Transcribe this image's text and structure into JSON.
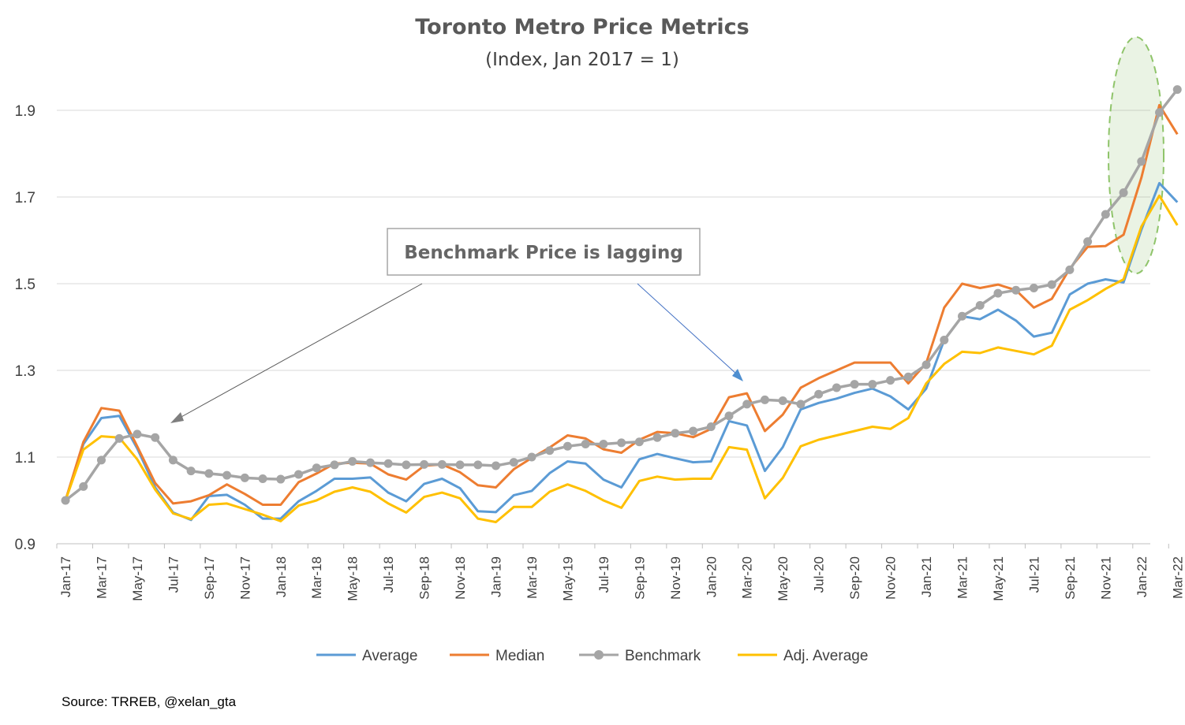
{
  "colors": {
    "Average": "#5b9bd5",
    "Median": "#ed7d31",
    "Benchmark": "#a5a5a5",
    "Adj. Average": "#ffc000",
    "grid": "#d9d9d9",
    "highlight": "#70ad47"
  },
  "source": "Source: TRREB, @xelan_gta",
  "annotation": "Benchmark Price is lagging",
  "chart_data": {
    "type": "line",
    "title": "Toronto Metro Price Metrics",
    "subtitle": "(Index, Jan 2017 = 1)",
    "ylim": [
      0.9,
      2.0
    ],
    "yticks": [
      "0.9",
      "1.1",
      "1.3",
      "1.5",
      "1.7",
      "1.9"
    ],
    "grid": true,
    "legend": "bottom",
    "xtick_labels": [
      "Jan-17",
      "Mar-17",
      "May-17",
      "Jul-17",
      "Sep-17",
      "Nov-17",
      "Jan-18",
      "Mar-18",
      "May-18",
      "Jul-18",
      "Sep-18",
      "Nov-18",
      "Jan-19",
      "Mar-19",
      "May-19",
      "Jul-19",
      "Sep-19",
      "Nov-19",
      "Jan-20",
      "Mar-20",
      "May-20",
      "Jul-20",
      "Sep-20",
      "Nov-20",
      "Jan-21",
      "Mar-21",
      "May-21",
      "Jul-21",
      "Sep-21",
      "Nov-21",
      "Jan-22",
      "Mar-22"
    ],
    "x": [
      "Jan-17",
      "Feb-17",
      "Mar-17",
      "Apr-17",
      "May-17",
      "Jun-17",
      "Jul-17",
      "Aug-17",
      "Sep-17",
      "Oct-17",
      "Nov-17",
      "Dec-17",
      "Jan-18",
      "Feb-18",
      "Mar-18",
      "Apr-18",
      "May-18",
      "Jun-18",
      "Jul-18",
      "Aug-18",
      "Sep-18",
      "Oct-18",
      "Nov-18",
      "Dec-18",
      "Jan-19",
      "Feb-19",
      "Mar-19",
      "Apr-19",
      "May-19",
      "Jun-19",
      "Jul-19",
      "Aug-19",
      "Sep-19",
      "Oct-19",
      "Nov-19",
      "Dec-19",
      "Jan-20",
      "Feb-20",
      "Mar-20",
      "Apr-20",
      "May-20",
      "Jun-20",
      "Jul-20",
      "Aug-20",
      "Sep-20",
      "Oct-20",
      "Nov-20",
      "Dec-20",
      "Jan-21",
      "Feb-21",
      "Mar-21",
      "Apr-21",
      "May-21",
      "Jun-21",
      "Jul-21",
      "Aug-21",
      "Sep-21",
      "Oct-21",
      "Nov-21",
      "Dec-21",
      "Jan-22",
      "Feb-22",
      "Mar-22"
    ],
    "series": [
      {
        "name": "Average",
        "values": [
          1.0,
          1.13,
          1.19,
          1.195,
          1.12,
          1.03,
          0.972,
          0.955,
          1.01,
          1.013,
          0.99,
          0.958,
          0.958,
          0.998,
          1.022,
          1.05,
          1.05,
          1.053,
          1.018,
          0.998,
          1.038,
          1.05,
          1.028,
          0.975,
          0.973,
          1.012,
          1.022,
          1.063,
          1.09,
          1.085,
          1.048,
          1.03,
          1.095,
          1.107,
          1.097,
          1.088,
          1.09,
          1.183,
          1.173,
          1.068,
          1.123,
          1.21,
          1.225,
          1.235,
          1.248,
          1.258,
          1.24,
          1.21,
          1.258,
          1.37,
          1.425,
          1.418,
          1.44,
          1.415,
          1.378,
          1.387,
          1.475,
          1.5,
          1.51,
          1.503,
          1.625,
          1.732,
          1.688
        ]
      },
      {
        "name": "Median",
        "values": [
          1.0,
          1.135,
          1.213,
          1.207,
          1.125,
          1.04,
          0.993,
          0.998,
          1.012,
          1.037,
          1.015,
          0.99,
          0.99,
          1.042,
          1.062,
          1.085,
          1.087,
          1.085,
          1.06,
          1.048,
          1.08,
          1.083,
          1.065,
          1.035,
          1.03,
          1.072,
          1.098,
          1.122,
          1.15,
          1.143,
          1.118,
          1.11,
          1.14,
          1.158,
          1.155,
          1.146,
          1.165,
          1.238,
          1.247,
          1.16,
          1.198,
          1.26,
          1.282,
          1.3,
          1.318,
          1.318,
          1.318,
          1.27,
          1.317,
          1.445,
          1.5,
          1.49,
          1.498,
          1.485,
          1.445,
          1.465,
          1.535,
          1.585,
          1.587,
          1.613,
          1.745,
          1.912,
          1.845
        ]
      },
      {
        "name": "Benchmark",
        "values": [
          1.0,
          1.032,
          1.093,
          1.143,
          1.153,
          1.145,
          1.093,
          1.068,
          1.062,
          1.058,
          1.052,
          1.05,
          1.049,
          1.06,
          1.075,
          1.082,
          1.09,
          1.087,
          1.085,
          1.082,
          1.083,
          1.083,
          1.082,
          1.082,
          1.08,
          1.088,
          1.1,
          1.115,
          1.125,
          1.13,
          1.13,
          1.133,
          1.135,
          1.145,
          1.155,
          1.16,
          1.17,
          1.195,
          1.222,
          1.232,
          1.23,
          1.222,
          1.245,
          1.26,
          1.268,
          1.268,
          1.277,
          1.285,
          1.313,
          1.37,
          1.425,
          1.45,
          1.478,
          1.485,
          1.49,
          1.498,
          1.532,
          1.597,
          1.66,
          1.71,
          1.782,
          1.895,
          1.948
        ]
      },
      {
        "name": "Adj. Average",
        "values": [
          1.0,
          1.117,
          1.148,
          1.145,
          1.095,
          1.025,
          0.97,
          0.957,
          0.99,
          0.993,
          0.98,
          0.967,
          0.952,
          0.988,
          1.0,
          1.02,
          1.03,
          1.02,
          0.993,
          0.972,
          1.008,
          1.018,
          1.005,
          0.958,
          0.95,
          0.985,
          0.985,
          1.02,
          1.037,
          1.022,
          1.0,
          0.983,
          1.045,
          1.055,
          1.048,
          1.05,
          1.05,
          1.123,
          1.117,
          1.005,
          1.052,
          1.125,
          1.14,
          1.15,
          1.16,
          1.17,
          1.165,
          1.19,
          1.27,
          1.315,
          1.343,
          1.34,
          1.353,
          1.345,
          1.337,
          1.357,
          1.44,
          1.462,
          1.488,
          1.51,
          1.632,
          1.703,
          1.635
        ]
      }
    ]
  }
}
